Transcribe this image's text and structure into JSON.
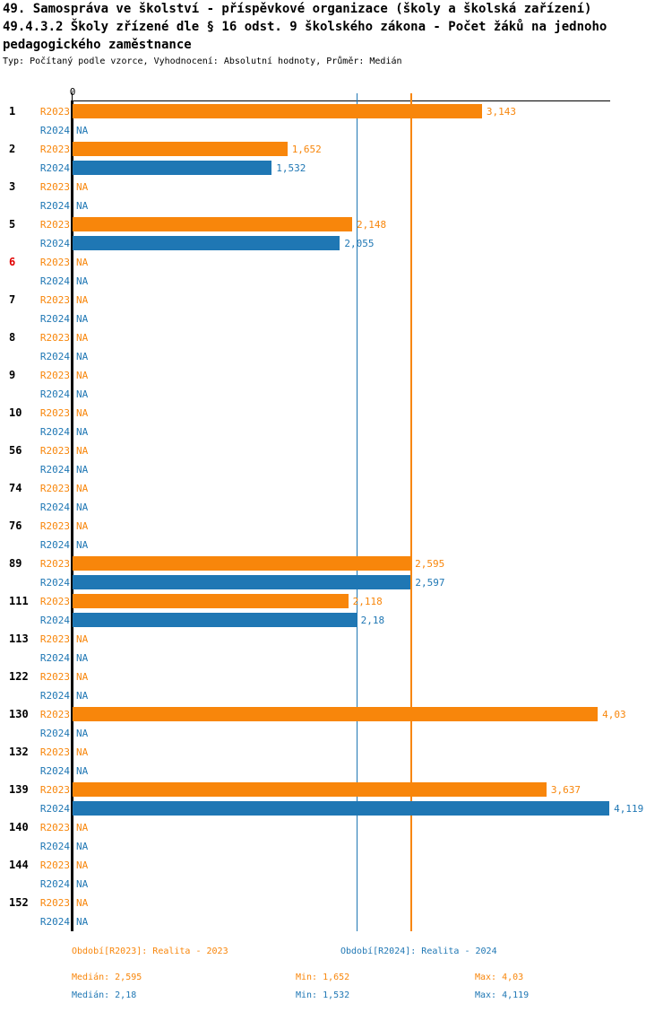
{
  "header": {
    "title_line1": "49. Samospráva ve školství - příspěvkové organizace (školy a školská zařízení)",
    "title_line2": "49.4.3.2 Školy zřízené dle § 16 odst. 9 školského zákona - Počet žáků na jednoho",
    "title_line3": "pedagogického zaměstnance",
    "subtitle": "Typ: Počítaný podle vzorce, Vyhodnocení: Absolutní hodnoty, Průměr: Medián"
  },
  "axis": {
    "zero_label": "0"
  },
  "colors": {
    "r2023": "#F8860B",
    "r2024": "#1F77B4",
    "highlight_category": "#E10000",
    "axis": "#000000"
  },
  "na_label": "NA",
  "chart_data": {
    "type": "bar",
    "orientation": "horizontal",
    "xlim": [
      0,
      4.125
    ],
    "grid": false,
    "categories": [
      "1",
      "2",
      "3",
      "5",
      "6",
      "7",
      "8",
      "9",
      "10",
      "56",
      "74",
      "76",
      "89",
      "111",
      "113",
      "122",
      "130",
      "132",
      "139",
      "140",
      "144",
      "152"
    ],
    "highlighted_categories": [
      "6"
    ],
    "series": [
      {
        "name": "R2023",
        "color": "#F8860B",
        "values": [
          3.143,
          1.652,
          null,
          2.148,
          null,
          null,
          null,
          null,
          null,
          null,
          null,
          null,
          2.595,
          2.118,
          null,
          null,
          4.03,
          null,
          3.637,
          null,
          null,
          null
        ],
        "labels": [
          "3,143",
          "1,652",
          "NA",
          "2,148",
          "NA",
          "NA",
          "NA",
          "NA",
          "NA",
          "NA",
          "NA",
          "NA",
          "2,595",
          "2,118",
          "NA",
          "NA",
          "4,03",
          "NA",
          "3,637",
          "NA",
          "NA",
          "NA"
        ]
      },
      {
        "name": "R2024",
        "color": "#1F77B4",
        "values": [
          null,
          1.532,
          null,
          2.055,
          null,
          null,
          null,
          null,
          null,
          null,
          null,
          null,
          2.597,
          2.18,
          null,
          null,
          null,
          null,
          4.119,
          null,
          null,
          null
        ],
        "labels": [
          "NA",
          "1,532",
          "NA",
          "2,055",
          "NA",
          "NA",
          "NA",
          "NA",
          "NA",
          "NA",
          "NA",
          "NA",
          "2,597",
          "2,18",
          "NA",
          "NA",
          "NA",
          "NA",
          "4,119",
          "NA",
          "NA",
          "NA"
        ]
      }
    ],
    "reference_lines": [
      {
        "name": "median-2023",
        "value": 2.595,
        "color": "#F8860B"
      },
      {
        "name": "median-2024",
        "value": 2.18,
        "color": "#1F77B4"
      }
    ]
  },
  "legend": {
    "period_2023": "Období[R2023]: Realita - 2023",
    "period_2024": "Období[R2024]: Realita - 2024"
  },
  "stats": {
    "r2023": {
      "median": "Medián: 2,595",
      "min": "Min: 1,652",
      "max": "Max: 4,03"
    },
    "r2024": {
      "median": "Medián: 2,18",
      "min": "Min: 1,532",
      "max": "Max: 4,119"
    }
  }
}
